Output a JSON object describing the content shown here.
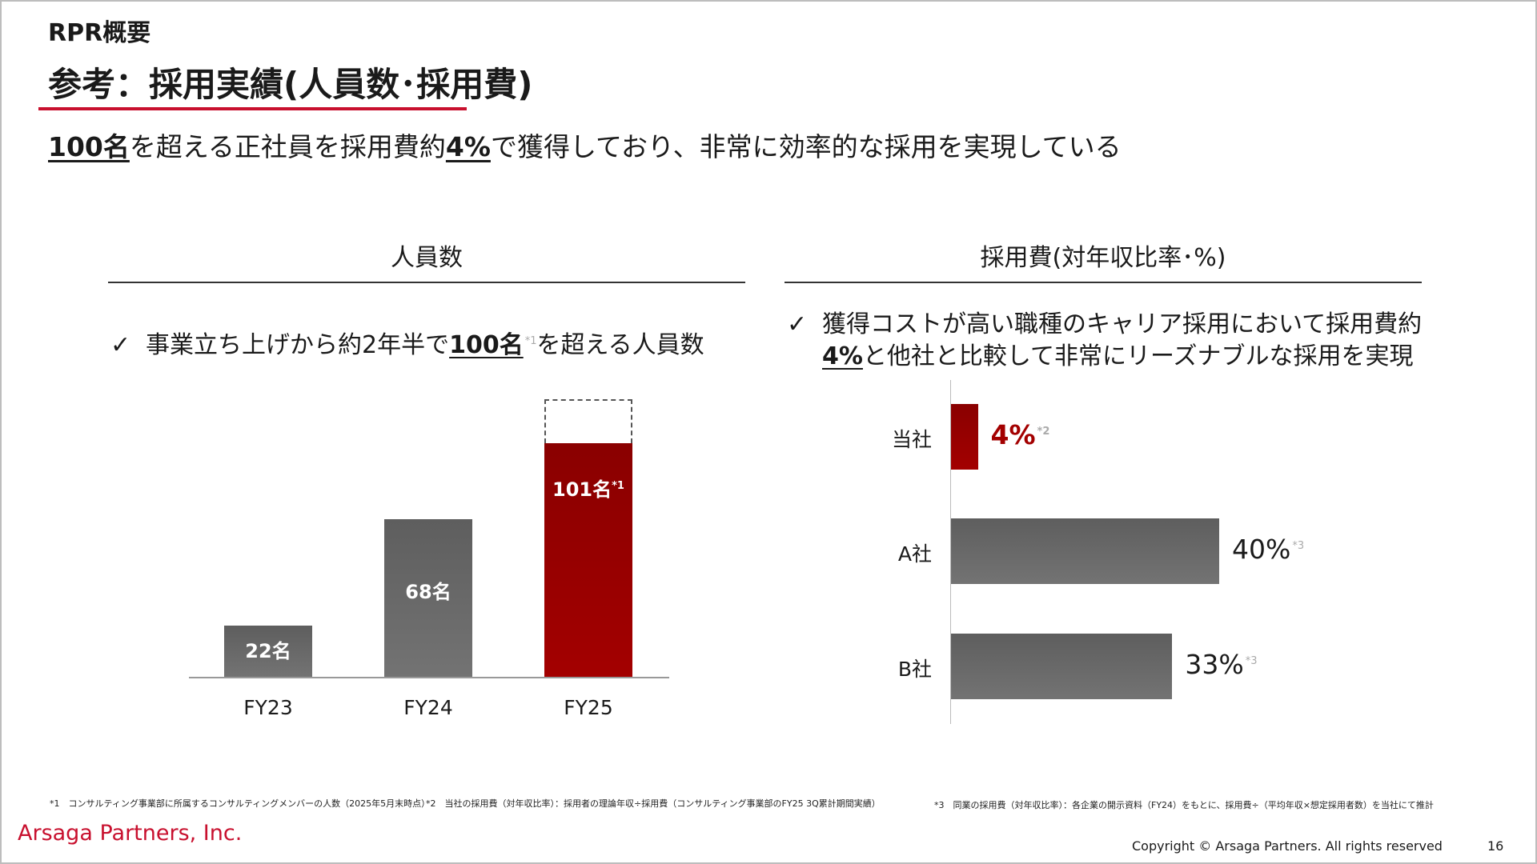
{
  "header": {
    "section": "RPR概要",
    "title": "参考：採用実績(人員数･採用費)",
    "subtitle_prefix_bold": "100名",
    "subtitle_mid": "を超える正社員を採用費約",
    "subtitle_bold2": "4%",
    "subtitle_rest": "で獲得しており、非常に効率的な採用を実現している"
  },
  "left_panel": {
    "heading": "人員数",
    "check_mark": "✓",
    "bullet_pre": "事業立ち上げから約2年半で",
    "bullet_bold": "100名",
    "bullet_note": "*1",
    "bullet_post": "を超える人員数"
  },
  "right_panel": {
    "heading": "採用費(対年収比率･%)",
    "check_mark": "✓",
    "bullet_line1": "獲得コストが高い職種のキャリア採用において採用費約",
    "bullet_bold": "4%",
    "bullet_line2": "と他社と比較して非常にリーズナブルな採用を実現"
  },
  "chart_data": [
    {
      "type": "bar",
      "title": "人員数",
      "categories": [
        "FY23",
        "FY24",
        "FY25"
      ],
      "values": [
        22,
        68,
        101
      ],
      "labels": [
        "22名",
        "68名",
        "101名"
      ],
      "notes": [
        "",
        "",
        "*1"
      ],
      "highlight": "FY25",
      "colors": [
        "#6b6b6b",
        "#6b6b6b",
        "#a30000"
      ]
    },
    {
      "type": "bar",
      "orientation": "horizontal",
      "title": "採用費(対年収比率･%)",
      "categories": [
        "当社",
        "A社",
        "B社"
      ],
      "values": [
        4,
        40,
        33
      ],
      "labels": [
        "4%",
        "40%",
        "33%"
      ],
      "notes": [
        "*2",
        "*3",
        "*3"
      ],
      "highlight": "当社",
      "colors": [
        "#a30000",
        "#6b6b6b",
        "#6b6b6b"
      ]
    }
  ],
  "footnotes": {
    "n1": "*1　コンサルティング事業部に所属するコンサルティングメンバーの人数（2025年5月末時点）",
    "n2": "*2　当社の採用費（対年収比率）：採用者の理論年収÷採用費（コンサルティング事業部のFY25 3Q累計期間実績）",
    "n3": "*3　同業の採用費（対年収比率）：各企業の開示資料（FY24）をもとに、採用費÷（平均年収×想定採用者数）を当社にて推計"
  },
  "footer": {
    "brand": "Arsaga Partners, Inc.",
    "copyright": "Copyright © Arsaga Partners. All rights reserved",
    "page_number": "16"
  }
}
